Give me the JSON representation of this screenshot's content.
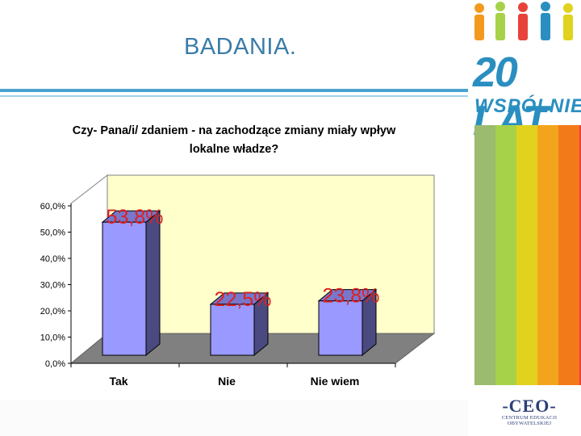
{
  "slide": {
    "title": "BADANIA."
  },
  "branding": {
    "anniversary_line1": "20 LAT",
    "anniversary_line2": "WSPÓLNIE",
    "org_mark": "-CEO-",
    "org_name": "CENTRUM EDUKACJI OBYWATELSKIEJ",
    "stripe_colors": [
      "#9bbb6e",
      "#a6d24a",
      "#e1d21e",
      "#f2a51c",
      "#f27a18",
      "#e8433a"
    ]
  },
  "colors": {
    "bar_front": "#9999ff",
    "bar_side": "#4a4a80",
    "bar_top": "#7777cc",
    "back_wall": "#ffffcc",
    "floor": "#808080",
    "label_red": "#e02020",
    "title_blue": "#3a7ca8"
  },
  "chart_data": {
    "type": "bar",
    "title_lines": [
      "Czy- Pana/i/ zdaniem - na zachodzące zmiany miały wpływ",
      "lokalne władze?"
    ],
    "categories": [
      "Tak",
      "Nie",
      "Nie wiem"
    ],
    "values": [
      53.8,
      22.5,
      23.8
    ],
    "data_labels": [
      "53,8%",
      "22,5%",
      "23,8%"
    ],
    "yticks": [
      "0,0%",
      "10,0%",
      "20,0%",
      "30,0%",
      "40,0%",
      "50,0%",
      "60,0%"
    ],
    "ylim": [
      0,
      60
    ],
    "grid": false,
    "legend": "none",
    "style": "3d-column"
  }
}
